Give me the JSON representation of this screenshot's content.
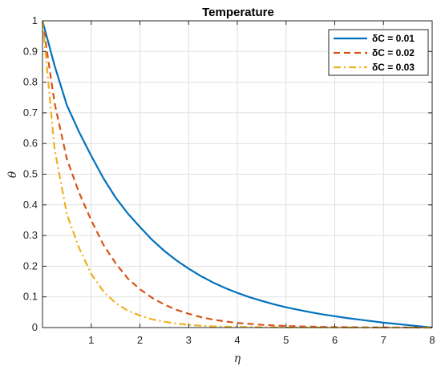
{
  "chart_data": {
    "type": "line",
    "title": "Temperature",
    "xlabel": "η",
    "ylabel": "θ",
    "xlim": [
      0,
      8
    ],
    "ylim": [
      0,
      1
    ],
    "xticks": [
      1,
      2,
      3,
      4,
      5,
      6,
      7,
      8
    ],
    "yticks": [
      0,
      0.1,
      0.2,
      0.3,
      0.4,
      0.5,
      0.6,
      0.7,
      0.8,
      0.9,
      1
    ],
    "grid": true,
    "legend_position": "top-right",
    "x": [
      0,
      0.25,
      0.5,
      0.75,
      1,
      1.25,
      1.5,
      1.75,
      2,
      2.25,
      2.5,
      2.75,
      3,
      3.25,
      3.5,
      3.75,
      4,
      4.25,
      4.5,
      4.75,
      5,
      5.25,
      5.5,
      5.75,
      6,
      6.25,
      6.5,
      6.75,
      7,
      7.25,
      7.5,
      7.75,
      8
    ],
    "series": [
      {
        "name": "δC = 0.01",
        "color": "#0072BD",
        "dash": "solid",
        "values": [
          1,
          0.853,
          0.725,
          0.638,
          0.56,
          0.487,
          0.424,
          0.372,
          0.328,
          0.286,
          0.25,
          0.219,
          0.192,
          0.168,
          0.147,
          0.129,
          0.113,
          0.099,
          0.087,
          0.076,
          0.066,
          0.058,
          0.05,
          0.043,
          0.037,
          0.031,
          0.026,
          0.021,
          0.016,
          0.012,
          0.008,
          0.004,
          0.0
        ]
      },
      {
        "name": "δC = 0.02",
        "color": "#D95319",
        "dash": "dashed",
        "values": [
          1,
          0.73,
          0.55,
          0.44,
          0.35,
          0.27,
          0.21,
          0.16,
          0.125,
          0.097,
          0.075,
          0.058,
          0.045,
          0.034,
          0.026,
          0.02,
          0.015,
          0.012,
          0.009,
          0.007,
          0.005,
          0.004,
          0.003,
          0.002,
          0.0015,
          0.001,
          0.0008,
          0.0005,
          0.0003,
          0.0002,
          0.0001,
          0.0,
          0.0
        ]
      },
      {
        "name": "δC = 0.03",
        "color": "#EDB120",
        "dash": "dashdot",
        "values": [
          1,
          0.58,
          0.37,
          0.26,
          0.175,
          0.118,
          0.08,
          0.055,
          0.039,
          0.027,
          0.019,
          0.013,
          0.009,
          0.006,
          0.004,
          0.003,
          0.002,
          0.0015,
          0.001,
          0.0007,
          0.0005,
          0.0003,
          0.0002,
          0.0001,
          0.0001,
          0.0,
          0.0,
          0.0,
          0.0,
          0.0,
          0.0,
          0.0,
          0.0
        ]
      }
    ]
  }
}
